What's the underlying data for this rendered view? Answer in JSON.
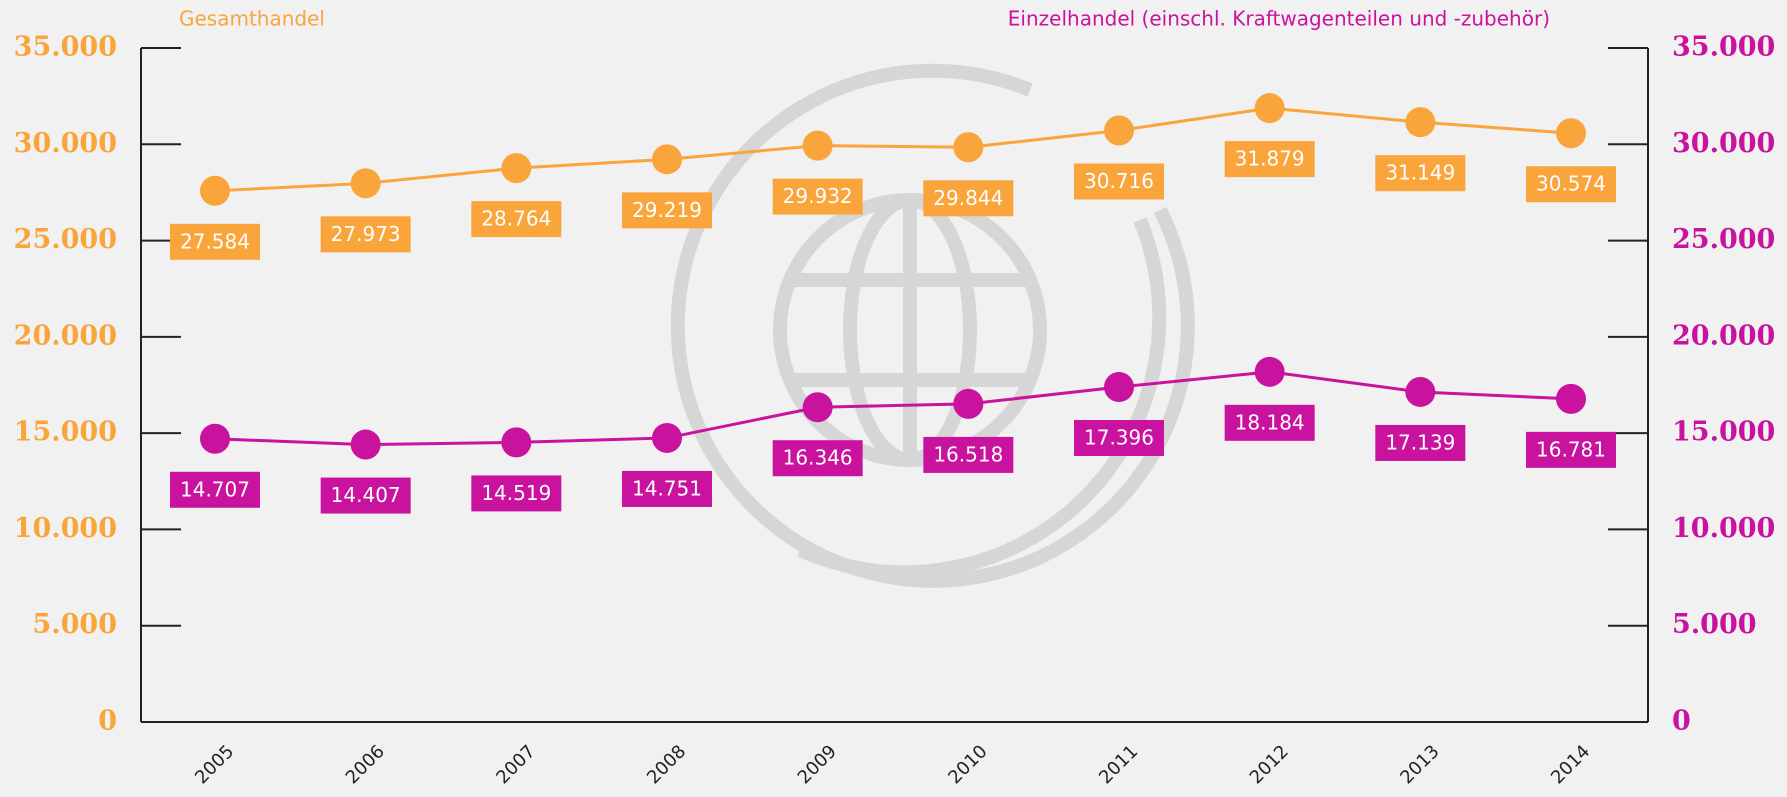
{
  "chart_data": {
    "type": "line",
    "categories": [
      "2005",
      "2006",
      "2007",
      "2008",
      "2009",
      "2010",
      "2011",
      "2012",
      "2013",
      "2014"
    ],
    "series": [
      {
        "name": "Gesamthandel",
        "color": "#f9a53b",
        "values": [
          27584,
          27973,
          28764,
          29219,
          29932,
          29844,
          30716,
          31879,
          31149,
          30574
        ],
        "value_labels": [
          "27.584",
          "27.973",
          "28.764",
          "29.219",
          "29.932",
          "29.844",
          "30.716",
          "31.879",
          "31.149",
          "30.574"
        ]
      },
      {
        "name": "Einzelhandel (einschl. Kraftwagenteilen und -zubehör)",
        "color": "#c9139e",
        "axis": "y2",
        "values": [
          14707,
          14407,
          14519,
          14751,
          16346,
          16518,
          17396,
          18184,
          17139,
          16781
        ],
        "value_labels": [
          "14.707",
          "14.407",
          "14.519",
          "14.751",
          "16.346",
          "16.518",
          "17.396",
          "18.184",
          "17.139",
          "16.781"
        ]
      }
    ],
    "ylim": [
      0,
      35000
    ],
    "yticks": [
      0,
      {
        "value": 5000,
        "label": "5.000"
      },
      {
        "value": 10000,
        "label": "10.000"
      },
      {
        "value": 15000,
        "label": "15.000"
      },
      {
        "value": 20000,
        "label": "20.000"
      },
      {
        "value": 25000,
        "label": "25.000"
      },
      {
        "value": 30000,
        "label": "30.000"
      },
      {
        "value": 35000,
        "label": "35.000"
      }
    ],
    "y2lim": [
      0,
      35000
    ],
    "y2ticks": [
      0,
      {
        "value": 5000,
        "label": "5.000"
      },
      {
        "value": 10000,
        "label": "10.000"
      },
      {
        "value": 15000,
        "label": "15.000"
      },
      {
        "value": 20000,
        "label": "20.000"
      },
      {
        "value": 25000,
        "label": "25.000"
      },
      {
        "value": 30000,
        "label": "30.000"
      },
      {
        "value": 35000,
        "label": "35.000"
      }
    ]
  }
}
